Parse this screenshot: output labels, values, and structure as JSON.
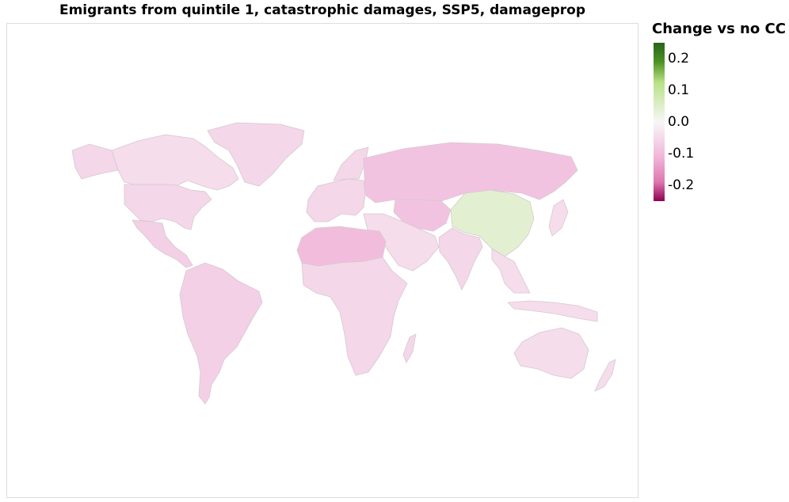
{
  "title": "Emigrants from quintile 1, catastrophic damages, SSP5, damageprop",
  "legend": {
    "title": "Change vs no CC",
    "ticks": [
      "0.2",
      "0.1",
      "0.0",
      "-0.1",
      "-0.2"
    ],
    "domain": [
      -0.25,
      0.25
    ],
    "colors": {
      "max": "#276419",
      "mid": "#f7f7f7",
      "min": "#8e0152"
    }
  },
  "chart_data": {
    "type": "choropleth",
    "variable": "Change vs no CC",
    "regions": [
      {
        "name": "Canada",
        "value": -0.04
      },
      {
        "name": "United States",
        "value": -0.05
      },
      {
        "name": "Mexico & Central America",
        "value": -0.06
      },
      {
        "name": "South America",
        "value": -0.06
      },
      {
        "name": "Greenland",
        "value": -0.05
      },
      {
        "name": "Europe",
        "value": -0.05
      },
      {
        "name": "Scandinavia",
        "value": -0.05
      },
      {
        "name": "Russia",
        "value": -0.08
      },
      {
        "name": "Central Asia",
        "value": -0.08
      },
      {
        "name": "North Africa",
        "value": -0.09
      },
      {
        "name": "Sub-Saharan Africa",
        "value": -0.05
      },
      {
        "name": "Middle East",
        "value": -0.04
      },
      {
        "name": "India",
        "value": -0.05
      },
      {
        "name": "China",
        "value": 0.04
      },
      {
        "name": "Southeast Asia",
        "value": -0.04
      },
      {
        "name": "Japan",
        "value": -0.04
      },
      {
        "name": "Australia",
        "value": -0.04
      },
      {
        "name": "New Zealand",
        "value": -0.04
      },
      {
        "name": "Madagascar",
        "value": -0.05
      }
    ]
  }
}
